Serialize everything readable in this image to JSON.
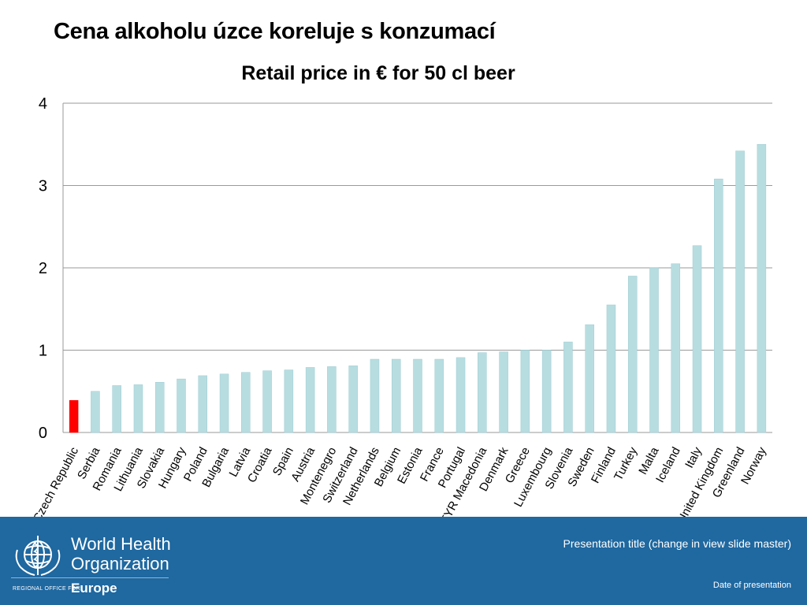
{
  "slide": {
    "title": "Cena alkoholu úzce koreluje s konzumací"
  },
  "chart_data": {
    "type": "bar",
    "title": "Retail price in € for 50 cl beer",
    "xlabel": "",
    "ylabel": "",
    "ylim": [
      0,
      4
    ],
    "yticks": [
      0,
      1,
      2,
      3,
      4
    ],
    "grid": true,
    "legend": "none",
    "bar_color": "#b8dde1",
    "highlight_color": "#ff0000",
    "highlight_category": "Czech Republic",
    "categories": [
      "Czech Republic",
      "Serbia",
      "Romania",
      "Lithuania",
      "Slovakia",
      "Hungary",
      "Poland",
      "Bulgaria",
      "Latvia",
      "Croatia",
      "Spain",
      "Austria",
      "Montenegro",
      "Switzerland",
      "Netherlands",
      "Belgium",
      "Estonia",
      "France",
      "Portugal",
      "FYR Macedonia",
      "Denmark",
      "Greece",
      "Luxembourg",
      "Slovenia",
      "Sweden",
      "Finland",
      "Turkey",
      "Malta",
      "Iceland",
      "Italy",
      "United Kingdom",
      "Greenland",
      "Norway"
    ],
    "values": [
      0.39,
      0.5,
      0.57,
      0.58,
      0.61,
      0.65,
      0.69,
      0.71,
      0.73,
      0.75,
      0.76,
      0.79,
      0.8,
      0.81,
      0.89,
      0.89,
      0.89,
      0.89,
      0.91,
      0.97,
      0.98,
      1.0,
      1.0,
      1.1,
      1.31,
      1.55,
      1.9,
      2.0,
      2.05,
      2.27,
      3.08,
      3.42,
      3.5
    ]
  },
  "footer": {
    "org_line1": "World Health",
    "org_line2": "Organization",
    "region_label": "REGIONAL OFFICE FOR",
    "region": "Europe",
    "presentation_title": "Presentation title (change in view slide master)",
    "date": "Date of presentation",
    "background": "#1f68a0",
    "logo_icon": "who-emblem-icon"
  }
}
